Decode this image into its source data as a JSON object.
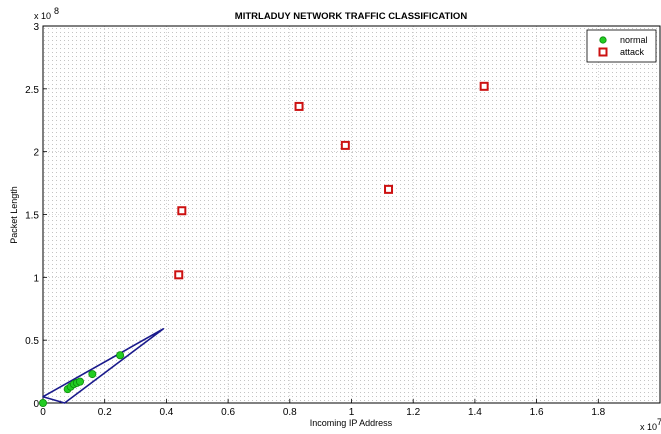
{
  "chart_data": {
    "type": "scatter",
    "title": "MITRLADUY NETWORK TRAFFIC CLASSIFICATION",
    "xlabel": "Incoming IP Address",
    "ylabel": "Packet Length",
    "x_exponent": "x 10",
    "y_exponent": "x 10",
    "xlim": [
      0,
      2
    ],
    "ylim": [
      0,
      3
    ],
    "x_ticks": [
      "0",
      "0.2",
      "0.4",
      "0.6",
      "0.8",
      "1",
      "1.2",
      "1.4",
      "1.6",
      "1.8"
    ],
    "y_ticks": [
      "0",
      "0.5",
      "1",
      "1.5",
      "2",
      "2.5",
      "3"
    ],
    "x_tick_values": [
      0,
      0.2,
      0.4,
      0.6,
      0.8,
      1.0,
      1.2,
      1.4,
      1.6,
      1.8
    ],
    "y_tick_values": [
      0,
      0.5,
      1.0,
      1.5,
      2.0,
      2.5,
      3.0
    ],
    "grid": true,
    "legend_position": "top-right",
    "colors": {
      "normal": "#22cc22",
      "attack": "#cc1111",
      "ellipse": "#1a1a8c"
    },
    "series": [
      {
        "name": "normal",
        "marker": "circle",
        "x": [
          0.0,
          0.08,
          0.09,
          0.1,
          0.11,
          0.12,
          0.16,
          0.25
        ],
        "y": [
          0.0,
          0.11,
          0.13,
          0.15,
          0.16,
          0.17,
          0.23,
          0.38
        ]
      },
      {
        "name": "attack",
        "marker": "square",
        "x": [
          0.44,
          0.45,
          0.83,
          0.98,
          1.12,
          1.43
        ],
        "y": [
          1.02,
          1.53,
          2.36,
          2.05,
          1.7,
          2.52
        ]
      }
    ],
    "ellipse_outline": [
      [
        0.0,
        0.05
      ],
      [
        0.39,
        0.59
      ],
      [
        0.07,
        0.0
      ]
    ]
  }
}
